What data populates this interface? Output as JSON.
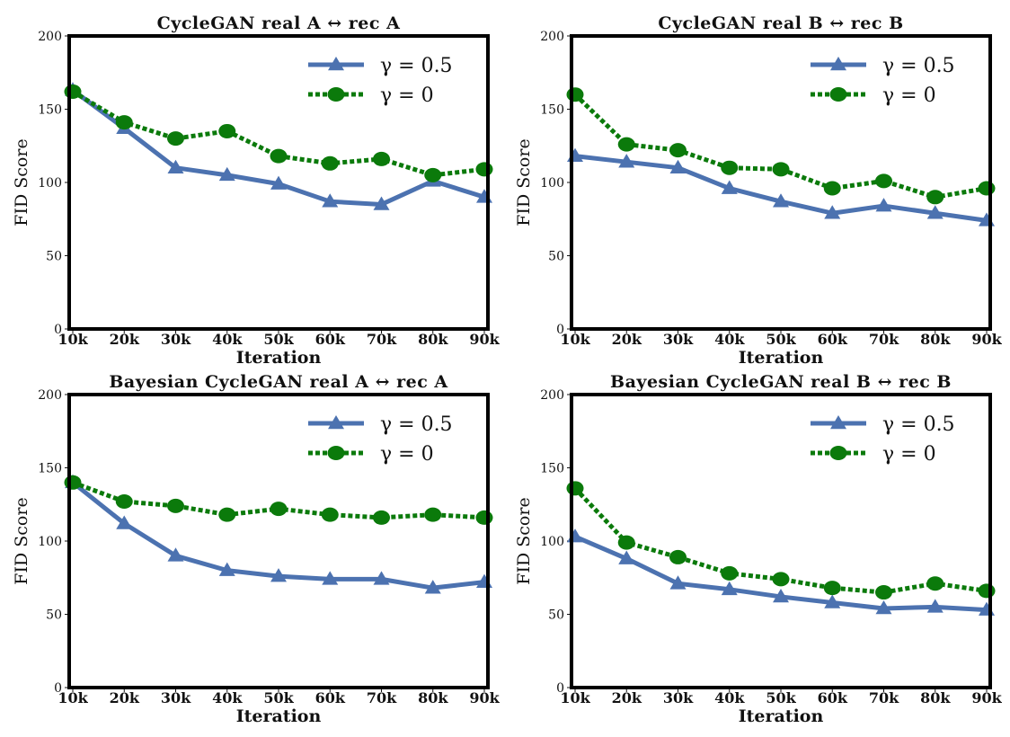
{
  "chart_data": [
    {
      "type": "line",
      "title": "CycleGAN   real A ↔ rec A",
      "xlabel": "Iteration",
      "ylabel": "FID Score",
      "categories": [
        "10k",
        "20k",
        "30k",
        "40k",
        "50k",
        "60k",
        "70k",
        "80k",
        "90k"
      ],
      "ylim": [
        0,
        200
      ],
      "yticks": [
        "0",
        "50",
        "100",
        "150",
        "200"
      ],
      "legend_position": "top-right",
      "grid": false,
      "series": [
        {
          "name": "γ = 0.5",
          "color": "#4c72b0",
          "marker": "triangle",
          "line": "solid",
          "values": [
            163,
            137,
            110,
            105,
            99,
            87,
            85,
            101,
            90
          ]
        },
        {
          "name": "γ = 0",
          "color": "#0b7a0b",
          "marker": "circle",
          "line": "dotted",
          "values": [
            162,
            141,
            130,
            135,
            118,
            113,
            116,
            105,
            109
          ]
        }
      ]
    },
    {
      "type": "line",
      "title": "CycleGAN   real B ↔ rec B",
      "xlabel": "Iteration",
      "ylabel": "FID Score",
      "categories": [
        "10k",
        "20k",
        "30k",
        "40k",
        "50k",
        "60k",
        "70k",
        "80k",
        "90k"
      ],
      "ylim": [
        0,
        200
      ],
      "yticks": [
        "0",
        "50",
        "100",
        "150",
        "200"
      ],
      "legend_position": "top-right",
      "grid": false,
      "series": [
        {
          "name": "γ = 0.5",
          "color": "#4c72b0",
          "marker": "triangle",
          "line": "solid",
          "values": [
            118,
            114,
            110,
            96,
            87,
            79,
            84,
            79,
            74
          ]
        },
        {
          "name": "γ = 0",
          "color": "#0b7a0b",
          "marker": "circle",
          "line": "dotted",
          "values": [
            160,
            126,
            122,
            110,
            109,
            96,
            101,
            90,
            96
          ]
        }
      ]
    },
    {
      "type": "line",
      "title": "Bayesian   CycleGAN   real A ↔ rec A",
      "xlabel": "Iteration",
      "ylabel": "FID Score",
      "categories": [
        "10k",
        "20k",
        "30k",
        "40k",
        "50k",
        "60k",
        "70k",
        "80k",
        "90k"
      ],
      "ylim": [
        0,
        200
      ],
      "yticks": [
        "0",
        "50",
        "100",
        "150",
        "200"
      ],
      "legend_position": "top-right",
      "grid": false,
      "series": [
        {
          "name": "γ = 0.5",
          "color": "#4c72b0",
          "marker": "triangle",
          "line": "solid",
          "values": [
            140,
            112,
            90,
            80,
            76,
            74,
            74,
            68,
            72
          ]
        },
        {
          "name": "γ = 0",
          "color": "#0b7a0b",
          "marker": "circle",
          "line": "dotted",
          "values": [
            140,
            127,
            124,
            118,
            122,
            118,
            116,
            118,
            116
          ]
        }
      ]
    },
    {
      "type": "line",
      "title": "Bayesian   CycleGAN   real B ↔ rec B",
      "xlabel": "Iteration",
      "ylabel": "FID Score",
      "categories": [
        "10k",
        "20k",
        "30k",
        "40k",
        "50k",
        "60k",
        "70k",
        "80k",
        "90k"
      ],
      "ylim": [
        0,
        200
      ],
      "yticks": [
        "0",
        "50",
        "100",
        "150",
        "200"
      ],
      "legend_position": "top-right",
      "grid": false,
      "series": [
        {
          "name": "γ = 0.5",
          "color": "#4c72b0",
          "marker": "triangle",
          "line": "solid",
          "values": [
            103,
            88,
            71,
            67,
            62,
            58,
            54,
            55,
            53
          ]
        },
        {
          "name": "γ = 0",
          "color": "#0b7a0b",
          "marker": "circle",
          "line": "dotted",
          "values": [
            136,
            99,
            89,
            78,
            74,
            68,
            65,
            71,
            66
          ]
        }
      ]
    }
  ]
}
